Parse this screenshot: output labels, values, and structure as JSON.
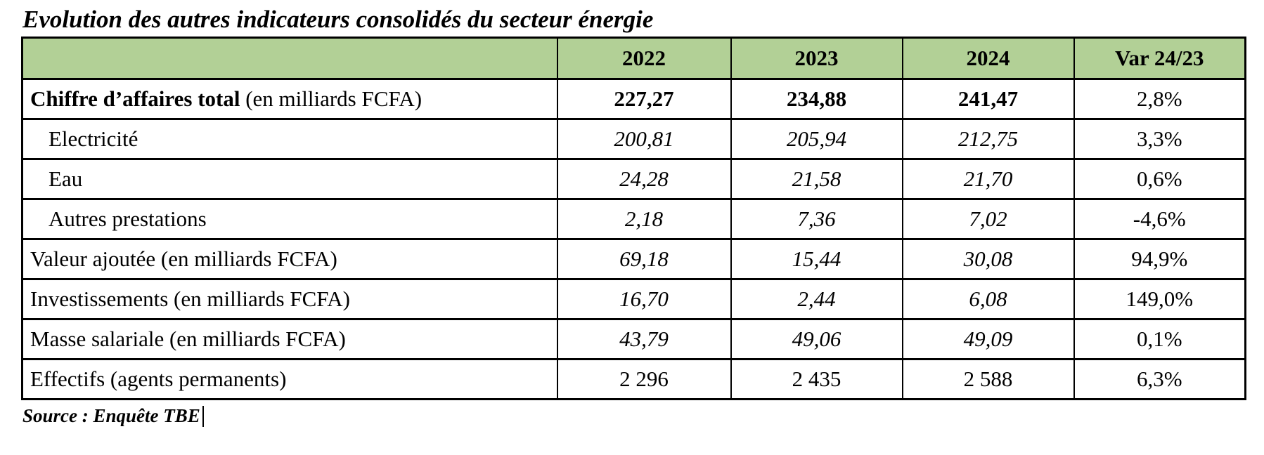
{
  "title": "Evolution des autres indicateurs consolidés du secteur énergie",
  "table": {
    "columns": [
      "",
      "2022",
      "2023",
      "2024",
      "Var 24/23"
    ],
    "header_bg_color": "#b2d096",
    "rows": [
      {
        "label_strong": "Chiffre d’affaires total",
        "label_plain": " (en milliards FCFA)",
        "indent": false,
        "num_style": "bold",
        "values": [
          "227,27",
          "234,88",
          "241,47"
        ],
        "var_value": "2,8%"
      },
      {
        "label_strong": "",
        "label_plain": "Electricité",
        "indent": true,
        "num_style": "italic",
        "values": [
          "200,81",
          "205,94",
          "212,75"
        ],
        "var_value": "3,3%"
      },
      {
        "label_strong": "",
        "label_plain": "Eau",
        "indent": true,
        "num_style": "italic",
        "values": [
          "24,28",
          "21,58",
          "21,70"
        ],
        "var_value": "0,6%"
      },
      {
        "label_strong": "",
        "label_plain": "Autres prestations",
        "indent": true,
        "num_style": "italic",
        "values": [
          "2,18",
          "7,36",
          "7,02"
        ],
        "var_value": "-4,6%"
      },
      {
        "label_strong": "",
        "label_plain": "Valeur ajoutée (en milliards FCFA)",
        "indent": false,
        "num_style": "italic",
        "values": [
          "69,18",
          "15,44",
          "30,08"
        ],
        "var_value": "94,9%"
      },
      {
        "label_strong": "",
        "label_plain": "Investissements (en milliards FCFA)",
        "indent": false,
        "num_style": "italic",
        "values": [
          "16,70",
          "2,44",
          "6,08"
        ],
        "var_value": "149,0%"
      },
      {
        "label_strong": "",
        "label_plain": "Masse salariale (en milliards FCFA)",
        "indent": false,
        "num_style": "italic",
        "values": [
          "43,79",
          "49,06",
          "49,09"
        ],
        "var_value": "0,1%"
      },
      {
        "label_strong": "",
        "label_plain": "Effectifs (agents permanents)",
        "indent": false,
        "num_style": "normal",
        "values": [
          "2 296",
          "2 435",
          "2 588"
        ],
        "var_value": "6,3%"
      }
    ]
  },
  "source_note": "Source : Enquête TBE"
}
